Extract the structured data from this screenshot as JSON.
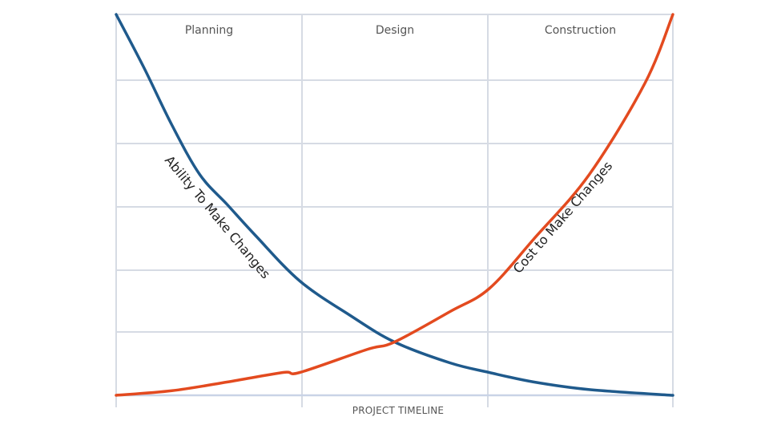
{
  "chart_data": {
    "type": "line",
    "title": "",
    "xlabel": "PROJECT TIMELINE",
    "ylabel": "",
    "phases": [
      "Planning",
      "Design",
      "Construction"
    ],
    "grid": true,
    "series": [
      {
        "name": "Ability To Make Changes",
        "color": "#1f5a8c",
        "x": [
          0,
          0.05,
          0.1,
          0.15,
          0.2,
          0.25,
          0.33,
          0.42,
          0.5,
          0.6,
          0.67,
          0.75,
          0.85,
          1.0
        ],
        "y": [
          1.0,
          0.86,
          0.71,
          0.58,
          0.5,
          0.42,
          0.3,
          0.21,
          0.14,
          0.085,
          0.06,
          0.035,
          0.015,
          0.0
        ]
      },
      {
        "name": "Cost to Make Changes",
        "color": "#e34a1f",
        "x": [
          0,
          0.1,
          0.2,
          0.3,
          0.33,
          0.45,
          0.5,
          0.6,
          0.67,
          0.75,
          0.85,
          0.95,
          1.0
        ],
        "y": [
          0.0,
          0.012,
          0.035,
          0.06,
          0.06,
          0.12,
          0.14,
          0.22,
          0.28,
          0.41,
          0.58,
          0.82,
          1.0
        ]
      }
    ]
  }
}
